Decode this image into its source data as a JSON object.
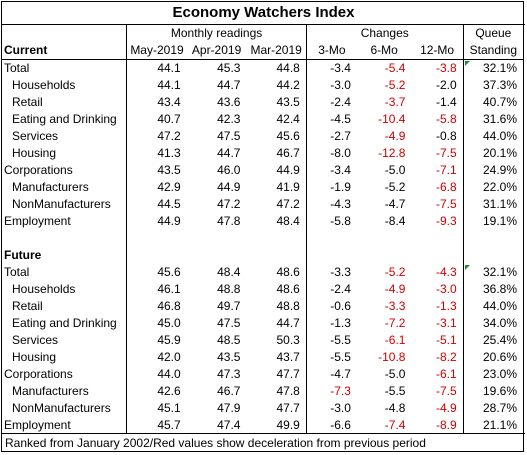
{
  "title": "Economy Watchers Index",
  "headers": {
    "monthly": "Monthly readings",
    "changes": "Changes",
    "queue": "Queue",
    "standing": "Standing",
    "cols": [
      "May-2019",
      "Apr-2019",
      "Mar-2019",
      "3-Mo",
      "6-Mo",
      "12-Mo"
    ]
  },
  "sections": [
    {
      "label": "Current",
      "rows": [
        {
          "name": "Total",
          "indent": false,
          "m1": "44.1",
          "m2": "45.3",
          "m3": "44.8",
          "c3": "-3.4",
          "c6": "-5.4",
          "c12": "-3.8",
          "q": "32.1%",
          "r3": false,
          "r6": true,
          "r12": true
        },
        {
          "name": "Households",
          "indent": true,
          "m1": "44.1",
          "m2": "44.7",
          "m3": "44.2",
          "c3": "-3.0",
          "c6": "-5.2",
          "c12": "-2.0",
          "q": "37.3%",
          "r3": false,
          "r6": true,
          "r12": false
        },
        {
          "name": "Retail",
          "indent": true,
          "m1": "43.4",
          "m2": "43.6",
          "m3": "43.5",
          "c3": "-2.4",
          "c6": "-3.7",
          "c12": "-1.4",
          "q": "40.7%",
          "r3": false,
          "r6": true,
          "r12": false
        },
        {
          "name": "Eating and Drinking",
          "indent": true,
          "m1": "40.7",
          "m2": "42.3",
          "m3": "42.4",
          "c3": "-4.5",
          "c6": "-10.4",
          "c12": "-5.8",
          "q": "31.6%",
          "r3": false,
          "r6": true,
          "r12": true
        },
        {
          "name": "Services",
          "indent": true,
          "m1": "47.2",
          "m2": "47.5",
          "m3": "45.6",
          "c3": "-2.7",
          "c6": "-4.9",
          "c12": "-0.8",
          "q": "44.0%",
          "r3": false,
          "r6": true,
          "r12": false
        },
        {
          "name": "Housing",
          "indent": true,
          "m1": "41.3",
          "m2": "44.7",
          "m3": "46.7",
          "c3": "-8.0",
          "c6": "-12.8",
          "c12": "-7.5",
          "q": "20.1%",
          "r3": false,
          "r6": true,
          "r12": true
        },
        {
          "name": "Corporations",
          "indent": false,
          "m1": "43.5",
          "m2": "46.0",
          "m3": "44.9",
          "c3": "-3.4",
          "c6": "-5.0",
          "c12": "-7.1",
          "q": "24.9%",
          "r3": false,
          "r6": false,
          "r12": true
        },
        {
          "name": "Manufacturers",
          "indent": true,
          "m1": "42.9",
          "m2": "44.9",
          "m3": "41.9",
          "c3": "-1.9",
          "c6": "-5.2",
          "c12": "-6.8",
          "q": "22.0%",
          "r3": false,
          "r6": false,
          "r12": true
        },
        {
          "name": "NonManufacturers",
          "indent": true,
          "m1": "44.5",
          "m2": "47.2",
          "m3": "47.2",
          "c3": "-4.3",
          "c6": "-4.7",
          "c12": "-7.5",
          "q": "31.1%",
          "r3": false,
          "r6": false,
          "r12": true
        },
        {
          "name": "Employment",
          "indent": false,
          "m1": "44.9",
          "m2": "47.8",
          "m3": "48.4",
          "c3": "-5.8",
          "c6": "-8.4",
          "c12": "-9.3",
          "q": "19.1%",
          "r3": false,
          "r6": false,
          "r12": true
        }
      ]
    },
    {
      "label": "Future",
      "rows": [
        {
          "name": "Total",
          "indent": false,
          "m1": "45.6",
          "m2": "48.4",
          "m3": "48.6",
          "c3": "-3.3",
          "c6": "-5.2",
          "c12": "-4.3",
          "q": "32.1%",
          "r3": false,
          "r6": true,
          "r12": true
        },
        {
          "name": "Households",
          "indent": true,
          "m1": "46.1",
          "m2": "48.8",
          "m3": "48.6",
          "c3": "-2.4",
          "c6": "-4.9",
          "c12": "-3.0",
          "q": "36.8%",
          "r3": false,
          "r6": true,
          "r12": true
        },
        {
          "name": "Retail",
          "indent": true,
          "m1": "46.8",
          "m2": "49.7",
          "m3": "48.8",
          "c3": "-0.6",
          "c6": "-3.3",
          "c12": "-1.3",
          "q": "44.0%",
          "r3": false,
          "r6": true,
          "r12": true
        },
        {
          "name": "Eating and Drinking",
          "indent": true,
          "m1": "45.0",
          "m2": "47.5",
          "m3": "44.7",
          "c3": "-1.3",
          "c6": "-7.2",
          "c12": "-3.1",
          "q": "34.0%",
          "r3": false,
          "r6": true,
          "r12": true
        },
        {
          "name": "Services",
          "indent": true,
          "m1": "45.9",
          "m2": "48.5",
          "m3": "50.3",
          "c3": "-5.5",
          "c6": "-6.1",
          "c12": "-5.1",
          "q": "25.4%",
          "r3": false,
          "r6": true,
          "r12": true
        },
        {
          "name": "Housing",
          "indent": true,
          "m1": "42.0",
          "m2": "43.5",
          "m3": "43.7",
          "c3": "-5.5",
          "c6": "-10.8",
          "c12": "-8.2",
          "q": "20.6%",
          "r3": false,
          "r6": true,
          "r12": true
        },
        {
          "name": "Corporations",
          "indent": false,
          "m1": "44.0",
          "m2": "47.3",
          "m3": "47.7",
          "c3": "-4.7",
          "c6": "-5.0",
          "c12": "-6.1",
          "q": "23.0%",
          "r3": false,
          "r6": false,
          "r12": true
        },
        {
          "name": "Manufacturers",
          "indent": true,
          "m1": "42.6",
          "m2": "46.7",
          "m3": "47.8",
          "c3": "-7.3",
          "c6": "-5.5",
          "c12": "-7.5",
          "q": "19.6%",
          "r3": true,
          "r6": false,
          "r12": true
        },
        {
          "name": "NonManufacturers",
          "indent": true,
          "m1": "45.1",
          "m2": "47.9",
          "m3": "47.7",
          "c3": "-3.0",
          "c6": "-4.8",
          "c12": "-4.9",
          "q": "28.7%",
          "r3": false,
          "r6": false,
          "r12": true
        },
        {
          "name": "Employment",
          "indent": false,
          "m1": "45.7",
          "m2": "47.4",
          "m3": "49.9",
          "c3": "-6.6",
          "c6": "-7.4",
          "c12": "-8.9",
          "q": "21.1%",
          "r3": false,
          "r6": true,
          "r12": true
        }
      ]
    }
  ],
  "footer": "Ranked from January 2002/Red values show deceleration from previous period",
  "colors": {
    "negative_accent": "#d00000",
    "comment_marker": "#1a8f3a"
  }
}
